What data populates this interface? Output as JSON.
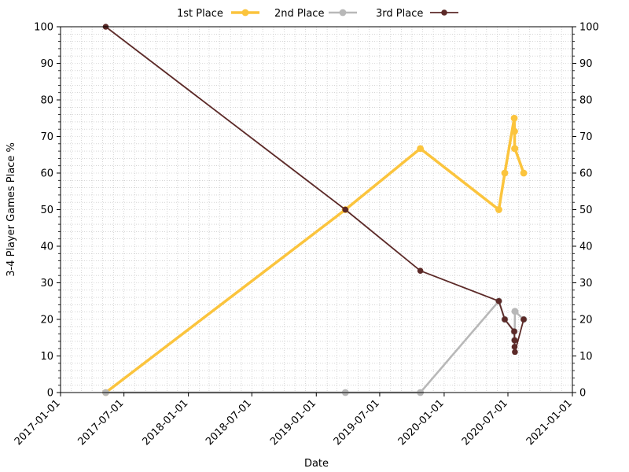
{
  "chart_data": {
    "type": "line",
    "xlabel": "Date",
    "ylabel": "3-4 Player Games Place %",
    "xlim": [
      "2017-01-01",
      "2021-01-01"
    ],
    "x_ticks": [
      "2017-01-01",
      "2017-07-01",
      "2018-01-01",
      "2018-07-01",
      "2019-01-01",
      "2019-07-01",
      "2020-01-01",
      "2020-07-01",
      "2021-01-01"
    ],
    "ylim": [
      0,
      100
    ],
    "y_ticks": [
      0,
      10,
      20,
      30,
      40,
      50,
      60,
      70,
      80,
      90,
      100
    ],
    "grid": "dotted, major and minor",
    "legend_position": "top-center",
    "series": [
      {
        "name": "1st Place",
        "color": "#fbc43d",
        "x": [
          "2017-05-10",
          "2019-03-25",
          "2019-10-25",
          "2020-06-05",
          "2020-06-22",
          "2020-07-19",
          "2020-07-20",
          "2020-07-20",
          "2020-07-21",
          "2020-08-15"
        ],
        "y": [
          0,
          50,
          66.7,
          50,
          60,
          75,
          71.4,
          66.7,
          66.7,
          60
        ]
      },
      {
        "name": "2nd Place",
        "color": "#b8b8b8",
        "x": [
          "2017-05-10",
          "2019-03-25",
          "2019-10-25",
          "2020-06-05",
          "2020-06-22",
          "2020-07-19",
          "2020-07-20",
          "2020-07-21",
          "2020-08-15"
        ],
        "y": [
          0,
          0,
          0,
          25,
          20,
          16.7,
          14.3,
          22.2,
          20
        ]
      },
      {
        "name": "3rd Place",
        "color": "#5c2a28",
        "x": [
          "2017-05-10",
          "2019-03-25",
          "2019-10-25",
          "2020-06-05",
          "2020-06-22",
          "2020-07-19",
          "2020-07-20",
          "2020-07-20",
          "2020-07-21",
          "2020-08-15"
        ],
        "y": [
          100,
          50,
          33.3,
          25,
          20,
          16.7,
          14.3,
          12.5,
          11.1,
          20
        ]
      }
    ]
  }
}
